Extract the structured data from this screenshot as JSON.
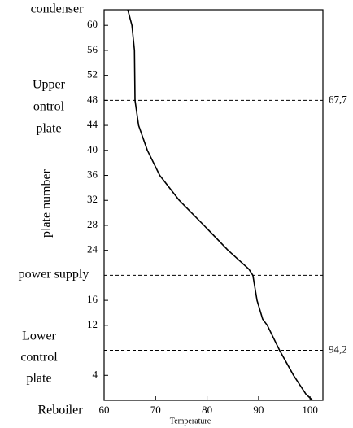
{
  "chart_data": {
    "type": "line",
    "x_label": "Temperature",
    "y_label": "plate number",
    "x": [
      64.6,
      65.4,
      65.9,
      66.0,
      66.7,
      68.4,
      70.8,
      74.6,
      79.4,
      84.1,
      88.1,
      88.9,
      89.7,
      90.8,
      91.7,
      94.1,
      96.8,
      99.2,
      100.5
    ],
    "y": [
      62.5,
      60,
      56,
      48,
      44,
      40,
      36,
      32,
      28,
      24,
      21,
      20,
      16,
      13,
      12,
      8,
      4,
      1,
      0
    ],
    "color": "#000000",
    "xlim": [
      60,
      102.5
    ],
    "ylim": [
      0,
      62.5
    ],
    "xticks": [
      60,
      70,
      80,
      90,
      100
    ],
    "yticks": [
      4,
      12,
      16,
      24,
      28,
      32,
      36,
      40,
      44,
      48,
      52,
      56,
      60
    ],
    "reference_lines": [
      {
        "y": 48,
        "label": "67,7"
      },
      {
        "y": 20
      },
      {
        "y": 8,
        "label": "94,2"
      }
    ],
    "side_labels": [
      [
        "condenser"
      ],
      [
        "Upper",
        "ontrol",
        "plate"
      ],
      [
        "power supply"
      ],
      [
        "Lower",
        "control",
        "plate"
      ],
      [
        "Reboiler"
      ]
    ]
  }
}
